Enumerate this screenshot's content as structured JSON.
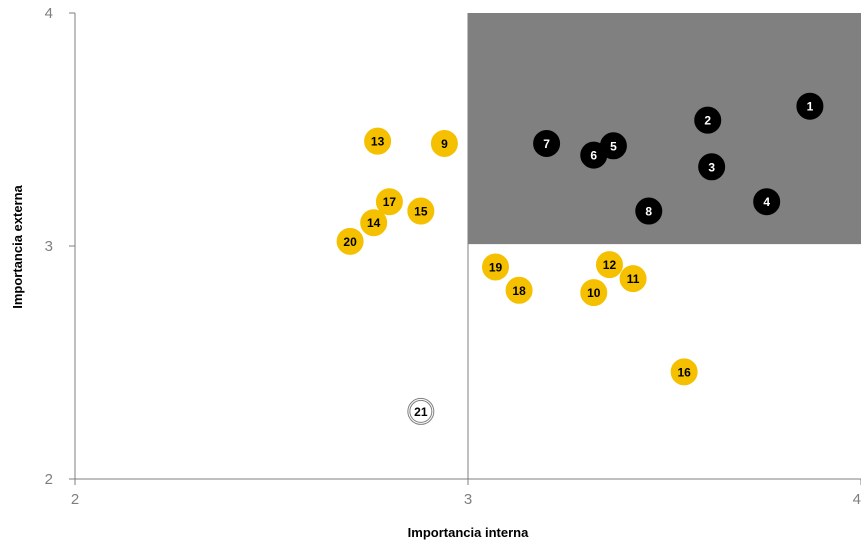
{
  "chart_data": {
    "type": "scatter",
    "title": "",
    "xlabel": "Importancia interna",
    "ylabel": "Importancia externa",
    "xlim": [
      2,
      4
    ],
    "ylim": [
      2,
      4
    ],
    "x_ticks": [
      "2",
      "3",
      "4"
    ],
    "y_ticks": [
      "2",
      "3",
      "4"
    ],
    "grid": false,
    "highlight_region": {
      "x": [
        3,
        4
      ],
      "y": [
        3.01,
        4
      ],
      "color": "#808080"
    },
    "divider_lines": {
      "x": 3,
      "y": 3.01
    },
    "colors": {
      "black": "#000000",
      "yellow": "#f5c000",
      "white": "#ffffff",
      "axis": "#7f7f7f"
    },
    "points": [
      {
        "label": "1",
        "x": 3.87,
        "y": 3.6,
        "style": "black"
      },
      {
        "label": "2",
        "x": 3.61,
        "y": 3.54,
        "style": "black"
      },
      {
        "label": "3",
        "x": 3.62,
        "y": 3.34,
        "style": "black"
      },
      {
        "label": "4",
        "x": 3.76,
        "y": 3.19,
        "style": "black"
      },
      {
        "label": "5",
        "x": 3.37,
        "y": 3.43,
        "style": "black"
      },
      {
        "label": "6",
        "x": 3.32,
        "y": 3.39,
        "style": "black"
      },
      {
        "label": "7",
        "x": 3.2,
        "y": 3.44,
        "style": "black"
      },
      {
        "label": "8",
        "x": 3.46,
        "y": 3.15,
        "style": "black"
      },
      {
        "label": "9",
        "x": 2.94,
        "y": 3.44,
        "style": "yellow"
      },
      {
        "label": "10",
        "x": 3.32,
        "y": 2.8,
        "style": "yellow"
      },
      {
        "label": "11",
        "x": 3.42,
        "y": 2.86,
        "style": "yellow"
      },
      {
        "label": "12",
        "x": 3.36,
        "y": 2.92,
        "style": "yellow"
      },
      {
        "label": "13",
        "x": 2.77,
        "y": 3.45,
        "style": "yellow"
      },
      {
        "label": "14",
        "x": 2.76,
        "y": 3.1,
        "style": "yellow"
      },
      {
        "label": "15",
        "x": 2.88,
        "y": 3.15,
        "style": "yellow"
      },
      {
        "label": "16",
        "x": 3.55,
        "y": 2.46,
        "style": "yellow"
      },
      {
        "label": "17",
        "x": 2.8,
        "y": 3.19,
        "style": "yellow"
      },
      {
        "label": "18",
        "x": 3.13,
        "y": 2.81,
        "style": "yellow"
      },
      {
        "label": "19",
        "x": 3.07,
        "y": 2.91,
        "style": "yellow"
      },
      {
        "label": "20",
        "x": 2.7,
        "y": 3.02,
        "style": "yellow"
      },
      {
        "label": "21",
        "x": 2.88,
        "y": 2.29,
        "style": "white"
      }
    ]
  }
}
